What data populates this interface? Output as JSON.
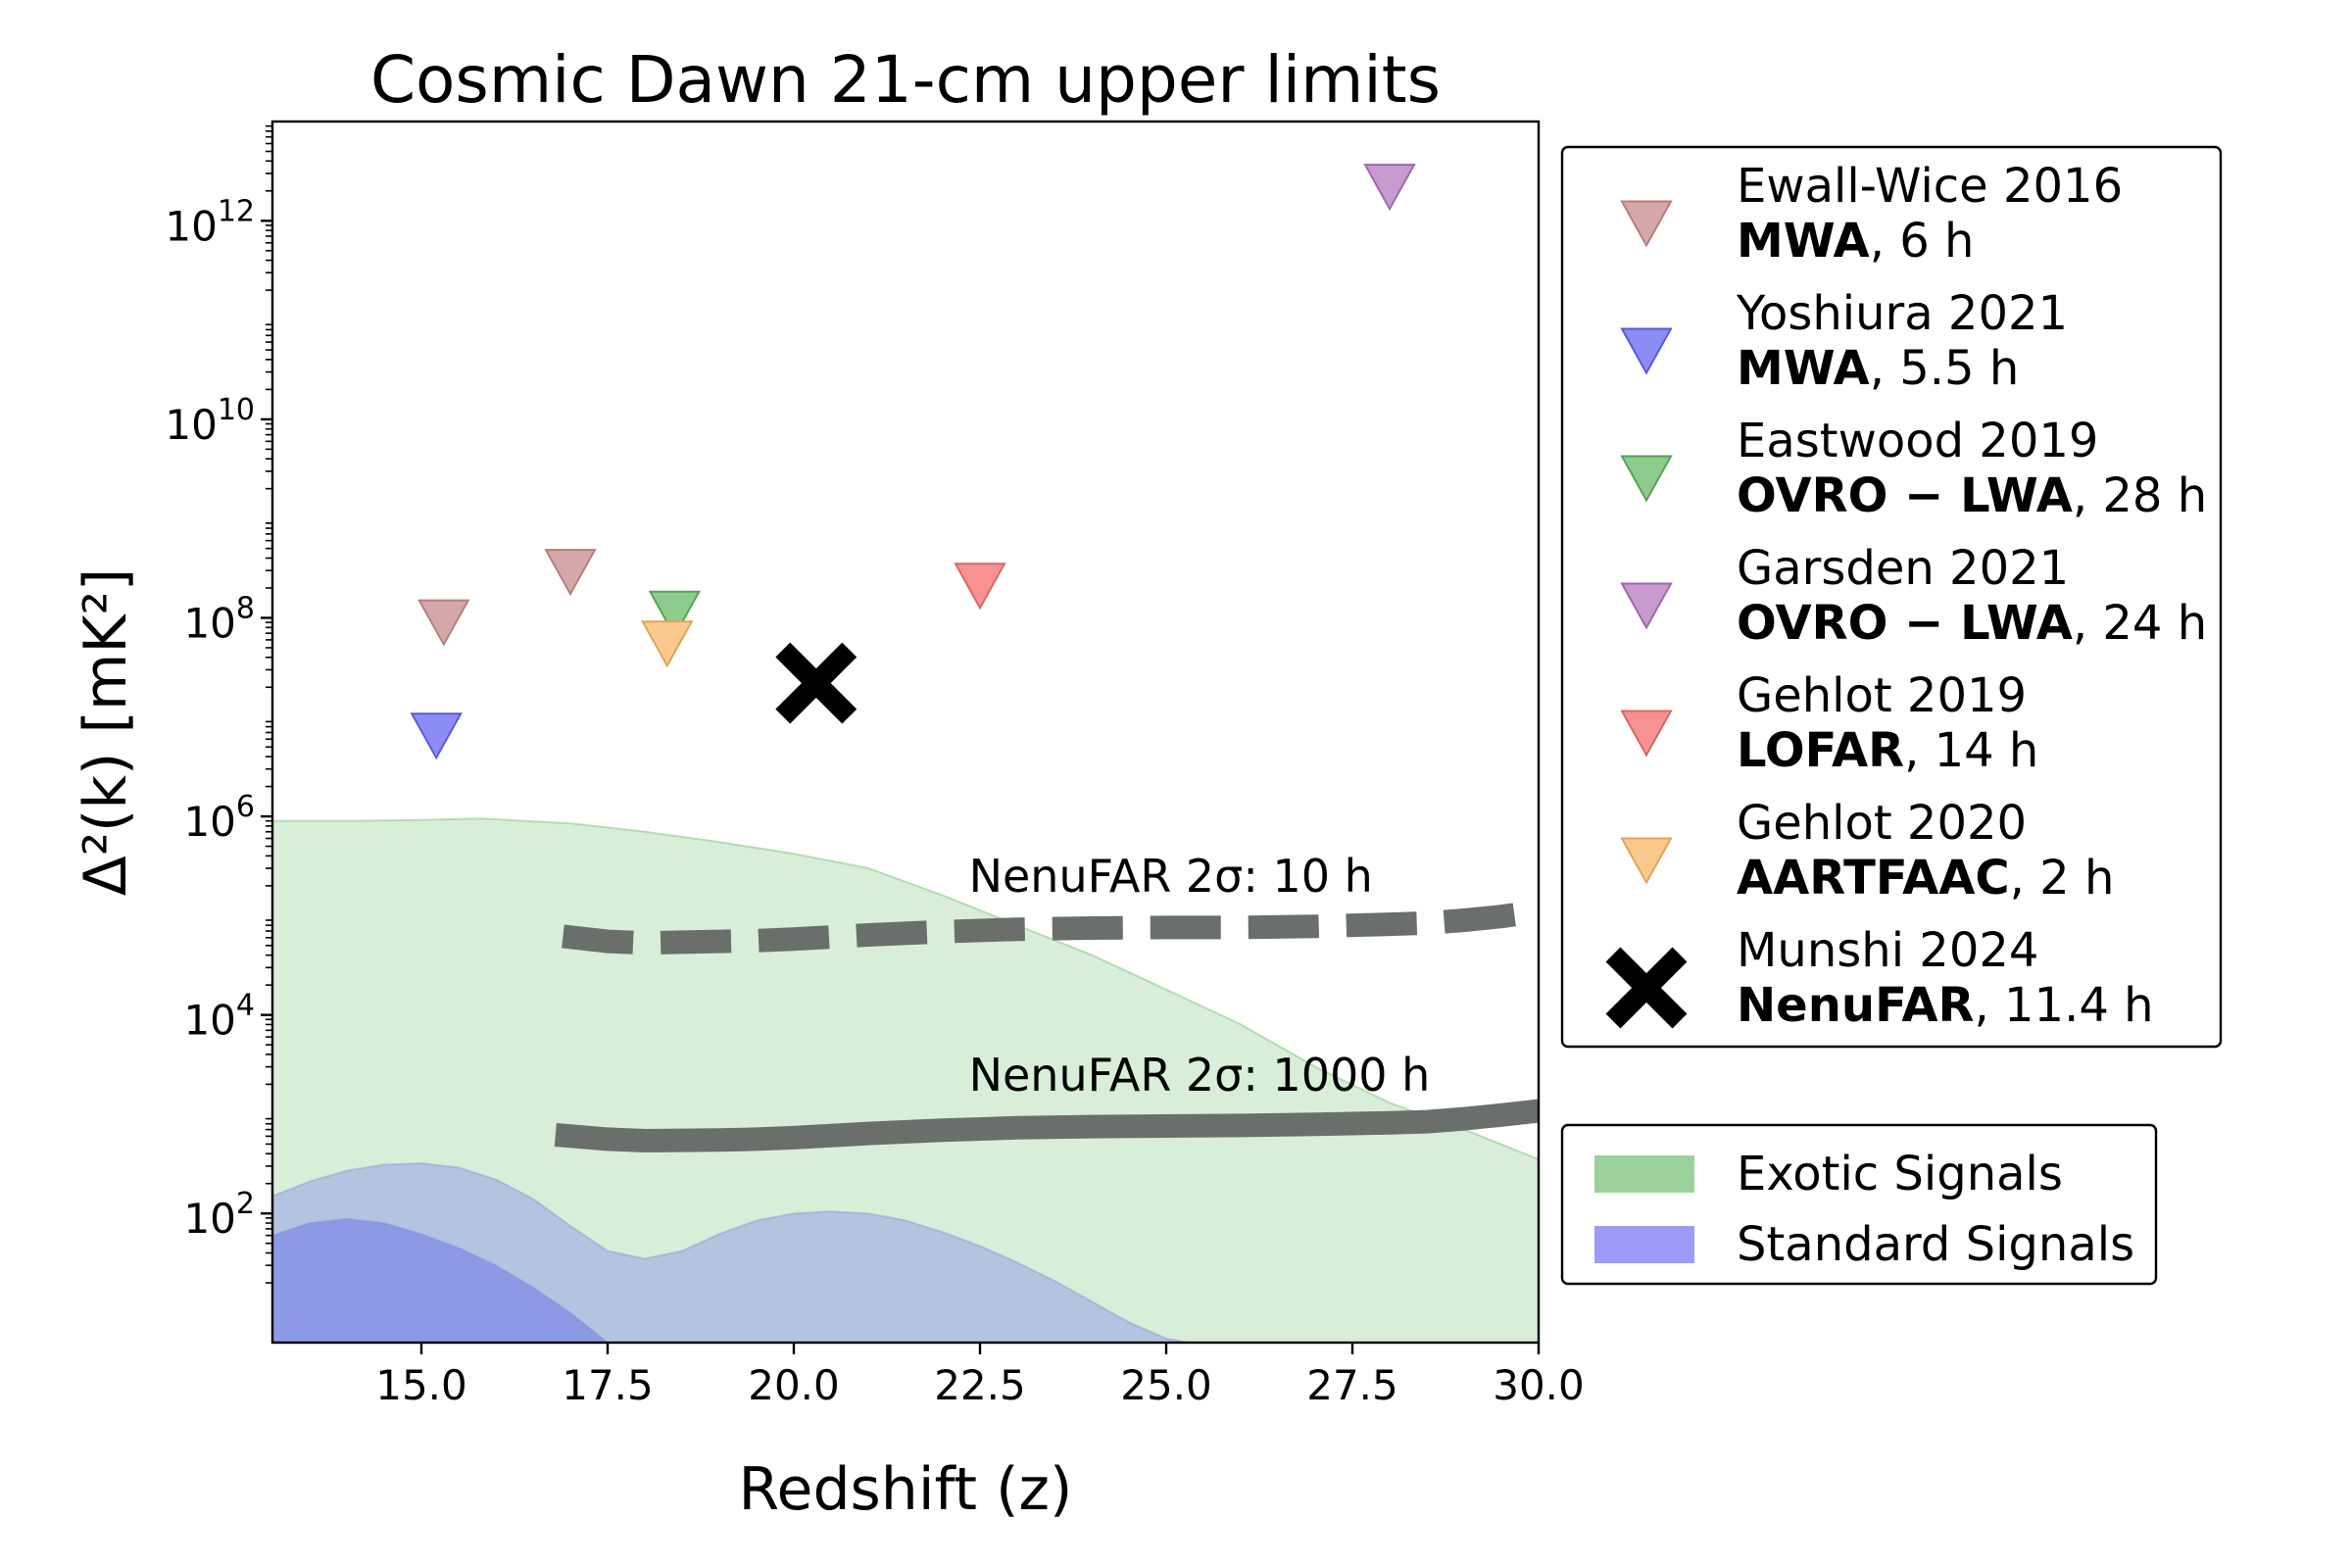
{
  "chart_data": {
    "type": "scatter",
    "title": "Cosmic Dawn 21-cm upper limits",
    "xlabel": "Redshift (z)",
    "ylabel": "Δ²(k) [mK²]",
    "xlim": [
      13.0,
      30.0
    ],
    "ylim": [
      5,
      10000000000000.0
    ],
    "yscale": "log",
    "xticks": [
      "15.0",
      "17.5",
      "20.0",
      "22.5",
      "25.0",
      "27.5",
      "30.0"
    ],
    "yticks": [
      {
        "value": 100,
        "base": "10",
        "exp": "2"
      },
      {
        "value": 10000,
        "base": "10",
        "exp": "4"
      },
      {
        "value": 1000000,
        "base": "10",
        "exp": "6"
      },
      {
        "value": 100000000,
        "base": "10",
        "exp": "8"
      },
      {
        "value": 10000000000,
        "base": "10",
        "exp": "10"
      },
      {
        "value": 1000000000000,
        "base": "10",
        "exp": "12"
      }
    ],
    "grid": false,
    "limits": [
      {
        "name": "Ewall-Wice 2016",
        "telescope": "MWA",
        "hours": ", 6 h",
        "color": "#d4a8a8",
        "edge": "#b87d7d",
        "marker": "triangle-down",
        "points": [
          {
            "x": 15.3,
            "y": 90000000.0
          },
          {
            "x": 17.0,
            "y": 290000000.0
          }
        ]
      },
      {
        "name": "Yoshiura 2021",
        "telescope": "MWA",
        "hours": ", 5.5 h",
        "color": "#8c8cf5",
        "edge": "#5a5ad8",
        "marker": "triangle-down",
        "points": [
          {
            "x": 15.2,
            "y": 6500000.0
          }
        ]
      },
      {
        "name": "Eastwood 2019",
        "telescope": "OVRO − LWA",
        "hours": ", 28 h",
        "color": "#8ccc8c",
        "edge": "#5aa05a",
        "marker": "triangle-down",
        "points": [
          {
            "x": 18.4,
            "y": 110000000.0
          }
        ]
      },
      {
        "name": "Garsden 2021",
        "telescope": "OVRO − LWA",
        "hours": ", 24 h",
        "color": "#c99ad0",
        "edge": "#9c6aa8",
        "marker": "triangle-down",
        "points": [
          {
            "x": 28.0,
            "y": 2200000000000.0
          }
        ]
      },
      {
        "name": "Gehlot 2019",
        "telescope": "LOFAR",
        "hours": ", 14 h",
        "color": "#f89292",
        "edge": "#d86666",
        "marker": "triangle-down",
        "points": [
          {
            "x": 22.5,
            "y": 210000000.0
          }
        ]
      },
      {
        "name": "Gehlot 2020",
        "telescope": "AARTFAAC",
        "hours": ", 2 h",
        "color": "#fbc98c",
        "edge": "#e0a45a",
        "marker": "triangle-down",
        "points": [
          {
            "x": 18.3,
            "y": 55000000.0
          }
        ]
      },
      {
        "name": "Munshi 2024",
        "telescope": "NenuFAR",
        "hours": ", 11.4 h",
        "color": "#000000",
        "edge": "#000000",
        "marker": "x",
        "points": [
          {
            "x": 20.3,
            "y": 22000000.0
          }
        ]
      }
    ],
    "sensitivity_curves": [
      {
        "label": "NenuFAR 2σ: 10 h",
        "style": "dashed",
        "color": "#6b6f6b",
        "x": [
          16.9,
          17.5,
          18.0,
          18.5,
          19.0,
          19.5,
          20.0,
          21.0,
          22.0,
          23.0,
          24.0,
          25.0,
          26.0,
          27.0,
          28.0,
          28.5,
          29.0,
          29.5,
          30.0
        ],
        "y": [
          62000.0,
          55000.0,
          53000.0,
          54000.0,
          55000.0,
          56000.0,
          58000.0,
          64000.0,
          69000.0,
          73000.0,
          75000.0,
          76000.0,
          76000.0,
          78000.0,
          82000.0,
          84000.0,
          90000.0,
          98000.0,
          110000.0
        ]
      },
      {
        "label": "NenuFAR 2σ: 1000 h",
        "style": "solid",
        "color": "#6b6f6b",
        "x": [
          16.8,
          17.5,
          18.0,
          18.5,
          19.0,
          19.5,
          20.0,
          21.0,
          22.0,
          23.0,
          24.0,
          25.0,
          26.0,
          27.0,
          28.0,
          28.5,
          29.0,
          29.5,
          30.0
        ],
        "y": [
          620,
          560,
          540,
          545,
          550,
          560,
          580,
          640,
          690,
          730,
          750,
          760,
          770,
          790,
          820,
          840,
          900,
          980,
          1080
        ]
      }
    ],
    "bands": [
      {
        "name": "Exotic Signals",
        "color": "#9bd19b",
        "fill_opacity": 0.38,
        "legend_opacity": 1.0,
        "x": [
          13.0,
          14.0,
          15.0,
          15.8,
          17.0,
          18.0,
          19.0,
          20.0,
          21.0,
          22.0,
          23.0,
          24.0,
          25.0,
          26.0,
          27.0,
          28.0,
          29.0,
          30.0
        ],
        "upper": [
          900000.0,
          900000.0,
          920000.0,
          950000.0,
          850000.0,
          700000.0,
          550000.0,
          420000.0,
          300000.0,
          160000.0,
          80000.0,
          40000.0,
          18000.0,
          8000.0,
          3000.0,
          1300.0,
          700.0,
          350.0
        ],
        "lower": [
          5,
          5,
          5,
          5,
          5,
          5,
          5,
          5,
          5,
          5,
          5,
          5,
          5,
          5,
          5,
          5,
          5,
          5
        ]
      },
      {
        "name": "Standard Signals",
        "color": "#9c9cf8",
        "fill_opacity": 1.0,
        "legend_opacity": 1.0,
        "sub_bands": [
          {
            "color": "#b3c3e0",
            "opacity": 1.0,
            "x": [
              13.0,
              13.5,
              14.0,
              14.5,
              15.0,
              15.5,
              16.0,
              16.5,
              17.0,
              17.5,
              18.0,
              18.5,
              19.0,
              19.5,
              20.0,
              20.5,
              21.0,
              21.5,
              22.0,
              22.5,
              23.0,
              23.5,
              24.0,
              24.5,
              25.0,
              25.3
            ],
            "upper": [
              150,
              210,
              270,
              310,
              320,
              290,
              220,
              140,
              75,
              42,
              35,
              42,
              62,
              85,
              100,
              105,
              100,
              85,
              65,
              47,
              32,
              21,
              13,
              8,
              5.5,
              5
            ],
            "lower": [
              5,
              5,
              5,
              5,
              5,
              5,
              5,
              5,
              5,
              5,
              5,
              5,
              5,
              5,
              5,
              5,
              5,
              5,
              5,
              5,
              5,
              5,
              5,
              5,
              5,
              5
            ]
          },
          {
            "color": "#8c9ae6",
            "opacity": 1.0,
            "x": [
              13.0,
              13.5,
              14.0,
              14.5,
              15.0,
              15.5,
              16.0,
              16.5,
              17.0,
              17.5
            ],
            "upper": [
              60,
              80,
              88,
              80,
              62,
              45,
              30,
              18,
              10,
              5
            ],
            "lower": [
              5,
              5,
              5,
              5,
              5,
              5,
              5,
              5,
              5,
              5
            ]
          }
        ]
      }
    ]
  }
}
